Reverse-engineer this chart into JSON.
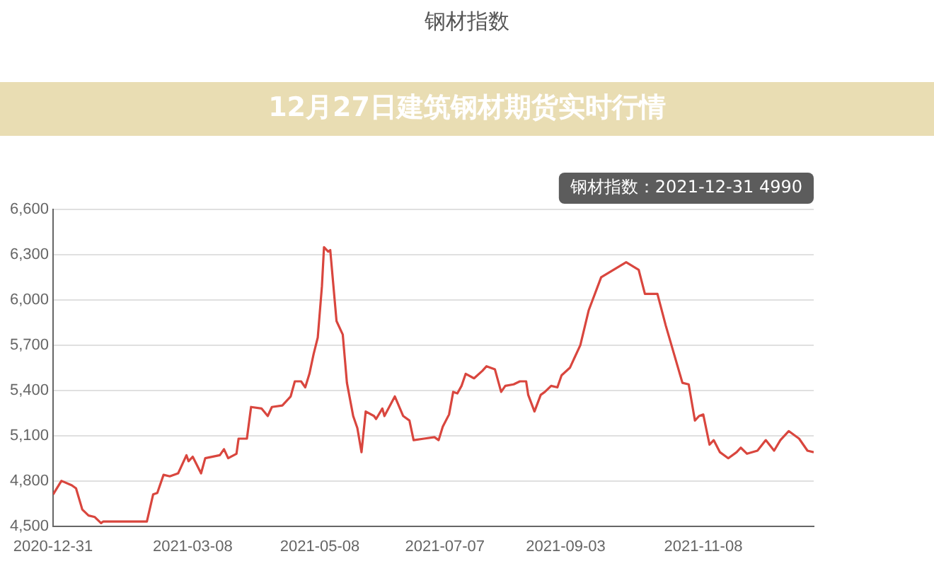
{
  "chart_data": {
    "type": "line",
    "title": "钢材指数",
    "x": [
      "2020-12-31",
      "2021-01-04",
      "2021-01-09",
      "2021-01-11",
      "2021-01-14",
      "2021-01-17",
      "2021-01-20",
      "2021-01-23",
      "2021-01-24",
      "2021-02-14",
      "2021-02-17",
      "2021-02-19",
      "2021-02-22",
      "2021-02-25",
      "2021-03-01",
      "2021-03-05",
      "2021-03-06",
      "2021-03-08",
      "2021-03-12",
      "2021-03-14",
      "2021-03-21",
      "2021-03-23",
      "2021-03-25",
      "2021-03-29",
      "2021-03-30",
      "2021-04-03",
      "2021-04-05",
      "2021-04-10",
      "2021-04-13",
      "2021-04-15",
      "2021-04-20",
      "2021-04-24",
      "2021-04-26",
      "2021-04-29",
      "2021-05-01",
      "2021-05-03",
      "2021-05-05",
      "2021-05-07",
      "2021-05-09",
      "2021-05-10",
      "2021-05-12",
      "2021-05-13",
      "2021-05-16",
      "2021-05-19",
      "2021-05-21",
      "2021-05-24",
      "2021-05-26",
      "2021-05-28",
      "2021-05-30",
      "2021-06-03",
      "2021-06-04",
      "2021-06-07",
      "2021-06-08",
      "2021-06-13",
      "2021-06-17",
      "2021-06-20",
      "2021-06-22",
      "2021-06-27",
      "2021-07-02",
      "2021-07-04",
      "2021-07-06",
      "2021-07-09",
      "2021-07-11",
      "2021-07-13",
      "2021-07-15",
      "2021-07-17",
      "2021-07-21",
      "2021-07-25",
      "2021-07-27",
      "2021-07-31",
      "2021-08-03",
      "2021-08-05",
      "2021-08-09",
      "2021-08-12",
      "2021-08-15",
      "2021-08-16",
      "2021-08-19",
      "2021-08-22",
      "2021-08-24",
      "2021-08-27",
      "2021-08-30",
      "2021-09-01",
      "2021-09-05",
      "2021-09-07",
      "2021-09-10",
      "2021-09-14",
      "2021-09-20",
      "2021-10-02",
      "2021-10-08",
      "2021-10-11",
      "2021-10-17",
      "2021-10-21",
      "2021-10-25",
      "2021-10-29",
      "2021-11-01",
      "2021-11-04",
      "2021-11-06",
      "2021-11-08",
      "2021-11-11",
      "2021-11-13",
      "2021-11-16",
      "2021-11-20",
      "2021-11-24",
      "2021-11-26",
      "2021-11-29",
      "2021-12-04",
      "2021-12-08",
      "2021-12-12",
      "2021-12-15",
      "2021-12-19",
      "2021-12-24",
      "2021-12-28",
      "2021-12-31"
    ],
    "series": [
      {
        "color": "#d9463e",
        "values": [
          4710,
          4800,
          4770,
          4750,
          4610,
          4570,
          4560,
          4520,
          4530,
          4530,
          4710,
          4720,
          4840,
          4830,
          4850,
          4970,
          4930,
          4960,
          4850,
          4950,
          4970,
          5010,
          4950,
          4980,
          5080,
          5080,
          5290,
          5280,
          5230,
          5290,
          5300,
          5360,
          5460,
          5460,
          5420,
          5510,
          5640,
          5750,
          6090,
          6350,
          6320,
          6330,
          5860,
          5770,
          5450,
          5230,
          5150,
          4990,
          5260,
          5230,
          5210,
          5280,
          5230,
          5360,
          5230,
          5200,
          5070,
          5080,
          5090,
          5070,
          5160,
          5240,
          5390,
          5380,
          5430,
          5510,
          5480,
          5530,
          5560,
          5540,
          5390,
          5430,
          5440,
          5460,
          5460,
          5370,
          5260,
          5370,
          5390,
          5430,
          5420,
          5500,
          5550,
          5610,
          5700,
          5930,
          6150,
          6250,
          6200,
          6040,
          6040,
          5830,
          5640,
          5450,
          5440,
          5200,
          5230,
          5240,
          5040,
          5070,
          4990,
          4950,
          4990,
          5020,
          4980,
          5000,
          5070,
          5000,
          5070,
          5130,
          5080,
          5000,
          4990
        ]
      }
    ],
    "xlim": [
      "2020-12-31",
      "2021-12-31"
    ],
    "xticks": [
      "2020-12-31",
      "2021-03-08",
      "2021-05-08",
      "2021-07-07",
      "2021-09-03",
      "2021-11-08"
    ],
    "ylim": [
      4500,
      6600
    ],
    "yticks": [
      {
        "value": 4500,
        "label": "4,500"
      },
      {
        "value": 4800,
        "label": "4,800"
      },
      {
        "value": 5100,
        "label": "5,100"
      },
      {
        "value": 5400,
        "label": "5,400"
      },
      {
        "value": 5700,
        "label": "5,700"
      },
      {
        "value": 6000,
        "label": "6,000"
      },
      {
        "value": 6300,
        "label": "6,300"
      },
      {
        "value": 6600,
        "label": "6,600"
      }
    ],
    "grid": "y",
    "legend": false,
    "marker": "none",
    "line_style": "solid",
    "annotations": [
      "12月27日建筑钢材期货实时行情",
      "钢材指数：2021-12-31 4990"
    ]
  }
}
